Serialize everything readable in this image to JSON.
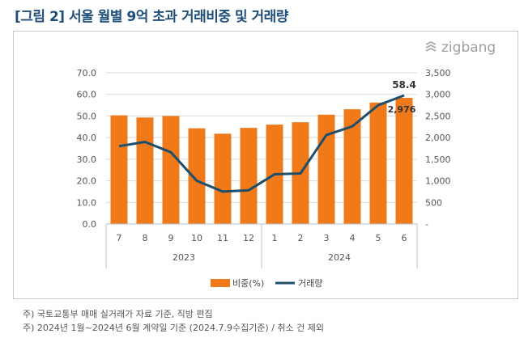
{
  "title": "[그림 2] 서울 월별 9억 초과 거래비중 및 거래량",
  "logo": {
    "text": "zigbang",
    "icon": "zigbang-logo-icon"
  },
  "colors": {
    "bar": "#f07a1a",
    "line": "#1f4e6b",
    "title": "#1f4e79"
  },
  "chart_data": {
    "type": "bar",
    "categories": [
      "7",
      "8",
      "9",
      "10",
      "11",
      "12",
      "1",
      "2",
      "3",
      "4",
      "5",
      "6"
    ],
    "year_groups": [
      {
        "label": "2023",
        "count": 6
      },
      {
        "label": "2024",
        "count": 6
      }
    ],
    "series": [
      {
        "name": "비중(%)",
        "type": "bar",
        "axis": "left",
        "values": [
          50.3,
          49.3,
          50.0,
          44.3,
          41.8,
          44.5,
          46.0,
          47.1,
          50.6,
          53.1,
          56.2,
          58.4
        ]
      },
      {
        "name": "거래량",
        "type": "line",
        "axis": "right",
        "values": [
          1800,
          1900,
          1660,
          1000,
          750,
          780,
          1150,
          1170,
          2060,
          2260,
          2750,
          2976
        ]
      }
    ],
    "ylim_left": [
      0,
      70
    ],
    "yticks_left": [
      "0.0",
      "10.0",
      "20.0",
      "30.0",
      "40.0",
      "50.0",
      "60.0",
      "70.0"
    ],
    "ylim_right": [
      0,
      3500
    ],
    "yticks_right": [
      "-",
      "500",
      "1,000",
      "1,500",
      "2,000",
      "2,500",
      "3,000",
      "3,500"
    ],
    "data_labels": {
      "bar_last": "58.4",
      "line_last": "2,976"
    },
    "grid": true,
    "legend_position": "bottom"
  },
  "notes": [
    "주) 국토교통부 매매 실거래가 자료 기준, 직방 편집",
    "주) 2024년 1월~2024년 6월 계약일 기준 (2024.7.9수집기준) / 취소 건 제외"
  ]
}
